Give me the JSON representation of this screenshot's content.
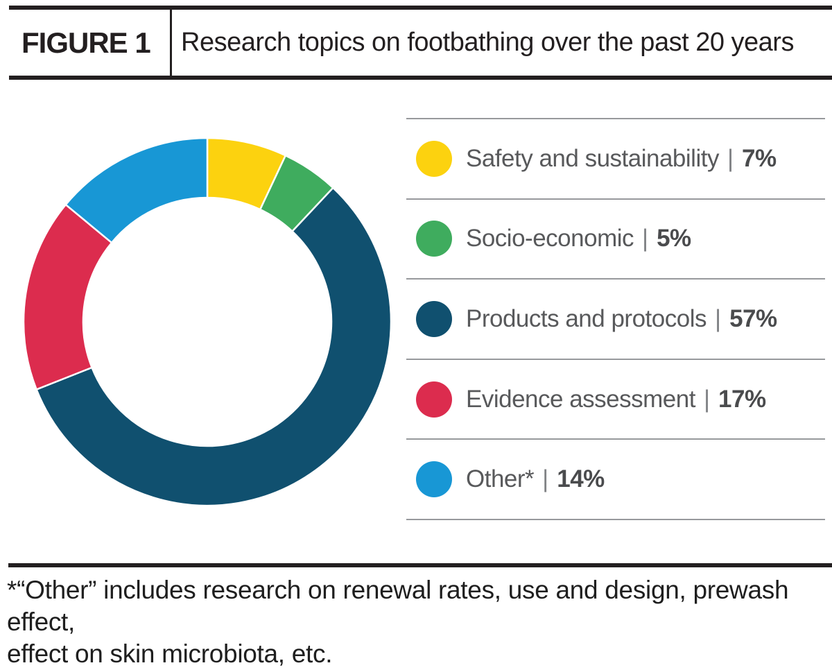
{
  "header": {
    "figure_label": "FIGURE 1",
    "title": "Research topics on footbathing over the past 20 years"
  },
  "legend": {
    "separator": "|",
    "items": [
      {
        "label": "Safety and sustainability",
        "pct": "7%",
        "color": "#fcd20f"
      },
      {
        "label": "Socio-economic",
        "pct": "5%",
        "color": "#3fac5e"
      },
      {
        "label": "Products and protocols",
        "pct": "57%",
        "color": "#10506f"
      },
      {
        "label": "Evidence assessment",
        "pct": "17%",
        "color": "#dc2c4e"
      },
      {
        "label": "Other*",
        "pct": "14%",
        "color": "#1897d5"
      }
    ]
  },
  "chart_data": {
    "type": "pie",
    "subtype": "donut",
    "title": "Research topics on footbathing over the past 20 years",
    "slices": [
      {
        "label": "Safety and sustainability",
        "value": 7,
        "color": "#fcd20f"
      },
      {
        "label": "Socio-economic",
        "value": 5,
        "color": "#3fac5e"
      },
      {
        "label": "Products and protocols",
        "value": 57,
        "color": "#10506f"
      },
      {
        "label": "Evidence assessment",
        "value": 17,
        "color": "#dc2c4e"
      },
      {
        "label": "Other*",
        "value": 14,
        "color": "#1897d5"
      }
    ],
    "start_angle_deg": 0,
    "direction": "clockwise",
    "inner_radius_ratio": 0.675,
    "separator_color": "#ffffff",
    "legend_position": "right"
  },
  "footnote": {
    "line1": "*“Other” includes research on renewal rates, use and design, prewash effect,",
    "line2": "effect on skin microbiota, etc."
  }
}
